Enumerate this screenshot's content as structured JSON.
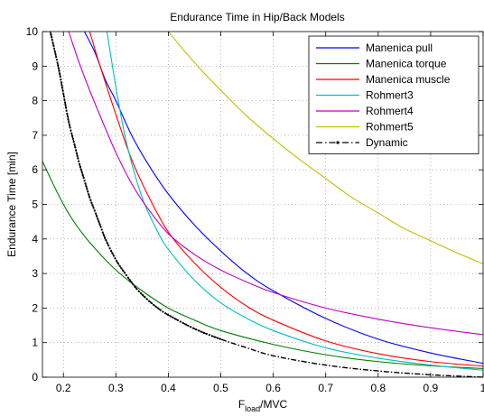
{
  "chart_data": {
    "type": "line",
    "title": "Endurance Time in Hip/Back Models",
    "xlabel_main": "F",
    "xlabel_sub": "load",
    "xlabel_tail": "/MVC",
    "ylabel": "Endurance Time [min]",
    "xlim": [
      0.16,
      1.0
    ],
    "ylim": [
      0,
      10
    ],
    "xticks": [
      "0.2",
      "0.3",
      "0.4",
      "0.5",
      "0.6",
      "0.7",
      "0.8",
      "0.9",
      "1"
    ],
    "xtick_values": [
      0.2,
      0.3,
      0.4,
      0.5,
      0.6,
      0.7,
      0.8,
      0.9,
      1.0
    ],
    "yticks": [
      "0",
      "1",
      "2",
      "3",
      "4",
      "5",
      "6",
      "7",
      "8",
      "9",
      "10"
    ],
    "ytick_values": [
      0,
      1,
      2,
      3,
      4,
      5,
      6,
      7,
      8,
      9,
      10
    ],
    "grid": true,
    "legend_position": "top-right",
    "series": [
      {
        "name": "Manenica pull",
        "color": "#0000ff",
        "style": "solid",
        "x": [
          0.24,
          0.26,
          0.28,
          0.3,
          0.33,
          0.36,
          0.4,
          0.45,
          0.5,
          0.55,
          0.6,
          0.7,
          0.8,
          0.9,
          1.0
        ],
        "y": [
          10.0,
          9.4,
          8.6,
          8.0,
          7.0,
          6.2,
          5.3,
          4.4,
          3.65,
          3.0,
          2.5,
          1.7,
          1.1,
          0.7,
          0.4
        ]
      },
      {
        "name": "Manenica torque",
        "color": "#008000",
        "style": "solid",
        "x": [
          0.16,
          0.18,
          0.2,
          0.22,
          0.25,
          0.3,
          0.35,
          0.4,
          0.45,
          0.5,
          0.6,
          0.7,
          0.8,
          0.9,
          1.0
        ],
        "y": [
          6.25,
          5.6,
          5.0,
          4.5,
          3.9,
          3.1,
          2.5,
          2.0,
          1.65,
          1.35,
          0.95,
          0.65,
          0.45,
          0.33,
          0.25
        ]
      },
      {
        "name": "Manenica muscle",
        "color": "#ff0000",
        "style": "solid",
        "x": [
          0.25,
          0.27,
          0.3,
          0.33,
          0.36,
          0.4,
          0.45,
          0.5,
          0.55,
          0.6,
          0.7,
          0.8,
          0.9,
          1.0
        ],
        "y": [
          10.0,
          9.0,
          7.6,
          6.3,
          5.3,
          4.2,
          3.3,
          2.6,
          2.05,
          1.65,
          1.05,
          0.68,
          0.45,
          0.32
        ]
      },
      {
        "name": "Rohmert3",
        "color": "#00bfbf",
        "style": "solid",
        "x": [
          0.283,
          0.3,
          0.32,
          0.35,
          0.38,
          0.4,
          0.45,
          0.5,
          0.55,
          0.6,
          0.7,
          0.8,
          0.9,
          1.0
        ],
        "y": [
          10.0,
          8.4,
          6.8,
          5.2,
          4.2,
          3.7,
          2.8,
          2.15,
          1.7,
          1.35,
          0.85,
          0.55,
          0.35,
          0.2
        ]
      },
      {
        "name": "Rohmert4",
        "color": "#bf00bf",
        "style": "solid",
        "x": [
          0.21,
          0.23,
          0.25,
          0.28,
          0.3,
          0.33,
          0.36,
          0.4,
          0.45,
          0.5,
          0.55,
          0.6,
          0.7,
          0.8,
          0.9,
          1.0
        ],
        "y": [
          10.0,
          9.1,
          8.3,
          7.2,
          6.5,
          5.6,
          4.9,
          4.15,
          3.55,
          3.1,
          2.75,
          2.45,
          2.0,
          1.68,
          1.43,
          1.23
        ]
      },
      {
        "name": "Rohmert5",
        "color": "#bfbf00",
        "style": "solid",
        "x": [
          0.4,
          0.45,
          0.5,
          0.55,
          0.6,
          0.65,
          0.7,
          0.75,
          0.8,
          0.85,
          0.9,
          0.95,
          1.0
        ],
        "y": [
          10.0,
          9.1,
          8.3,
          7.55,
          6.9,
          6.3,
          5.75,
          5.2,
          4.75,
          4.3,
          3.95,
          3.6,
          3.28
        ]
      },
      {
        "name": "Dynamic",
        "color": "#000000",
        "style": "dashdot",
        "x": [
          0.175,
          0.19,
          0.2,
          0.21,
          0.22,
          0.23,
          0.24,
          0.25,
          0.26,
          0.27,
          0.28,
          0.3,
          0.32,
          0.34,
          0.36,
          0.38,
          0.4,
          0.45,
          0.5,
          0.55,
          0.6,
          0.7,
          0.8,
          0.9,
          1.0
        ],
        "y": [
          10.0,
          9.0,
          8.2,
          7.4,
          6.8,
          6.2,
          5.7,
          5.2,
          4.8,
          4.4,
          4.0,
          3.4,
          2.95,
          2.55,
          2.25,
          2.0,
          1.8,
          1.4,
          1.1,
          0.85,
          0.62,
          0.35,
          0.18,
          0.07,
          0.0
        ]
      }
    ]
  }
}
